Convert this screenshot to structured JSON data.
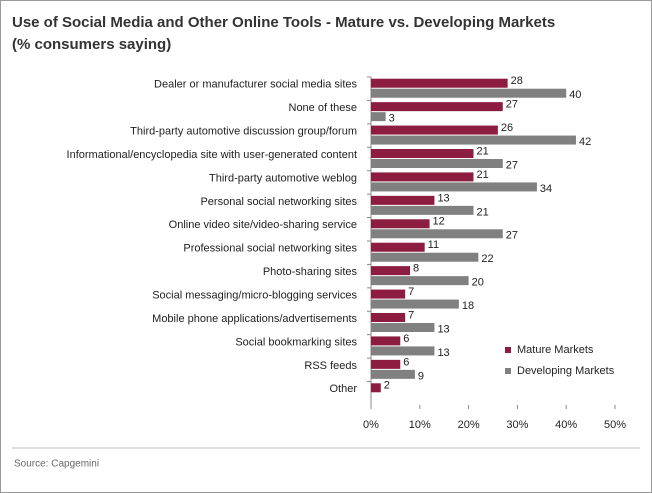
{
  "chart_data": {
    "type": "bar",
    "orientation": "horizontal",
    "title": "Use of Social Media and Other Online Tools - Mature vs. Developing Markets",
    "subtitle": "(% consumers saying)",
    "source": "Source: Capgemini",
    "categories": [
      "Dealer or manufacturer social media sites",
      "None of these",
      "Third-party automotive discussion group/forum",
      "Informational/encyclopedia site with user-generated content",
      "Third-party automotive weblog",
      "Personal social networking sites",
      "Online video site/video-sharing service",
      "Professional social networking sites",
      "Photo-sharing sites",
      "Social messaging/micro-blogging services",
      "Mobile phone applications/advertisements",
      "Social bookmarking sites",
      "RSS feeds",
      "Other"
    ],
    "series": [
      {
        "name": "Mature Markets",
        "color": "#8c1d40",
        "values": [
          28,
          27,
          26,
          21,
          21,
          13,
          12,
          11,
          8,
          7,
          7,
          6,
          6,
          2
        ]
      },
      {
        "name": "Developing Markets",
        "color": "#808080",
        "values": [
          40,
          3,
          42,
          27,
          34,
          21,
          27,
          22,
          20,
          18,
          13,
          13,
          9,
          null
        ]
      }
    ],
    "xlim": [
      0,
      50
    ],
    "xticks": [
      {
        "value": 0,
        "label": "0%"
      },
      {
        "value": 10,
        "label": "10%"
      },
      {
        "value": 20,
        "label": "20%"
      },
      {
        "value": 30,
        "label": "30%"
      },
      {
        "value": 40,
        "label": "40%"
      },
      {
        "value": 50,
        "label": "50%"
      }
    ],
    "legend": "lower right"
  }
}
